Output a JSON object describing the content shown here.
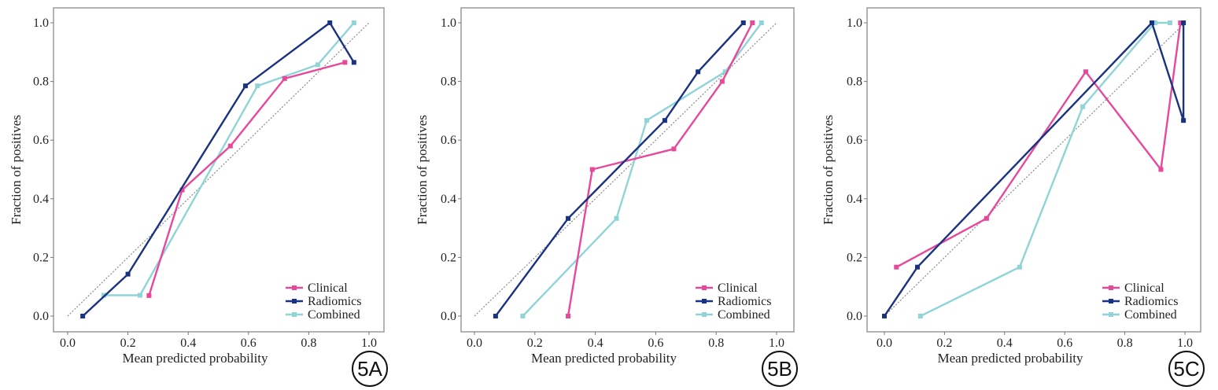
{
  "chart_data": [
    {
      "type": "line",
      "xlabel": "Mean predicted probability",
      "ylabel": "Fraction of positives",
      "xlim": [
        0.0,
        1.0
      ],
      "ylim": [
        0.0,
        1.0
      ],
      "xticks": [
        "0.0",
        "0.2",
        "0.4",
        "0.6",
        "0.8",
        "1.0"
      ],
      "yticks": [
        "0.0",
        "0.2",
        "0.4",
        "0.6",
        "0.8",
        "1.0"
      ],
      "panel_label": "5A",
      "legend_position": "bottom-right",
      "reference_line": "diagonal",
      "series": [
        {
          "name": "Clinical",
          "color": "#e8489a",
          "points": [
            [
              0.27,
              0.07
            ],
            [
              0.38,
              0.43
            ],
            [
              0.54,
              0.58
            ],
            [
              0.72,
              0.81
            ],
            [
              0.92,
              0.865
            ]
          ]
        },
        {
          "name": "Radiomics",
          "color": "#1a3282",
          "points": [
            [
              0.05,
              0.0
            ],
            [
              0.2,
              0.143
            ],
            [
              0.59,
              0.785
            ],
            [
              0.87,
              1.0
            ],
            [
              0.95,
              0.865
            ]
          ]
        },
        {
          "name": "Combined",
          "color": "#8fd4d6",
          "points": [
            [
              0.12,
              0.071
            ],
            [
              0.24,
              0.071
            ],
            [
              0.63,
              0.785
            ],
            [
              0.83,
              0.857
            ],
            [
              0.95,
              1.0
            ]
          ]
        }
      ]
    },
    {
      "type": "line",
      "xlabel": "Mean predicted probability",
      "ylabel": "Fraction of positives",
      "xlim": [
        0.0,
        1.0
      ],
      "ylim": [
        0.0,
        1.0
      ],
      "xticks": [
        "0.0",
        "0.2",
        "0.4",
        "0.6",
        "0.8",
        "1.0"
      ],
      "yticks": [
        "0.0",
        "0.2",
        "0.4",
        "0.6",
        "0.8",
        "1.0"
      ],
      "panel_label": "5B",
      "legend_position": "bottom-right",
      "reference_line": "diagonal",
      "series": [
        {
          "name": "Clinical",
          "color": "#e8489a",
          "points": [
            [
              0.31,
              0.0
            ],
            [
              0.39,
              0.5
            ],
            [
              0.66,
              0.57
            ],
            [
              0.82,
              0.8
            ],
            [
              0.92,
              1.0
            ]
          ]
        },
        {
          "name": "Radiomics",
          "color": "#1a3282",
          "points": [
            [
              0.07,
              0.0
            ],
            [
              0.31,
              0.333
            ],
            [
              0.63,
              0.667
            ],
            [
              0.74,
              0.833
            ],
            [
              0.89,
              1.0
            ]
          ]
        },
        {
          "name": "Combined",
          "color": "#8fd4d6",
          "points": [
            [
              0.16,
              0.0
            ],
            [
              0.47,
              0.333
            ],
            [
              0.57,
              0.667
            ],
            [
              0.83,
              0.833
            ],
            [
              0.95,
              1.0
            ]
          ]
        }
      ]
    },
    {
      "type": "line",
      "xlabel": "Mean predicted probability",
      "ylabel": "Fraction of positives",
      "xlim": [
        0.0,
        1.0
      ],
      "ylim": [
        0.0,
        1.0
      ],
      "xticks": [
        "0.0",
        "0.2",
        "0.4",
        "0.6",
        "0.8",
        "1.0"
      ],
      "yticks": [
        "0.0",
        "0.2",
        "0.4",
        "0.6",
        "0.8",
        "1.0"
      ],
      "panel_label": "5C",
      "legend_position": "bottom-right",
      "reference_line": "diagonal",
      "series": [
        {
          "name": "Clinical",
          "color": "#e8489a",
          "points": [
            [
              0.04,
              0.167
            ],
            [
              0.34,
              0.333
            ],
            [
              0.67,
              0.833
            ],
            [
              0.92,
              0.5
            ],
            [
              0.985,
              1.0
            ]
          ]
        },
        {
          "name": "Radiomics",
          "color": "#1a3282",
          "points": [
            [
              0.0,
              0.0
            ],
            [
              0.11,
              0.167
            ],
            [
              0.89,
              1.0
            ],
            [
              0.995,
              0.667
            ],
            [
              0.995,
              1.0
            ]
          ]
        },
        {
          "name": "Combined",
          "color": "#8fd4d6",
          "points": [
            [
              0.12,
              0.0
            ],
            [
              0.45,
              0.167
            ],
            [
              0.66,
              0.714
            ],
            [
              0.9,
              1.0
            ],
            [
              0.95,
              1.0
            ]
          ]
        }
      ]
    }
  ]
}
